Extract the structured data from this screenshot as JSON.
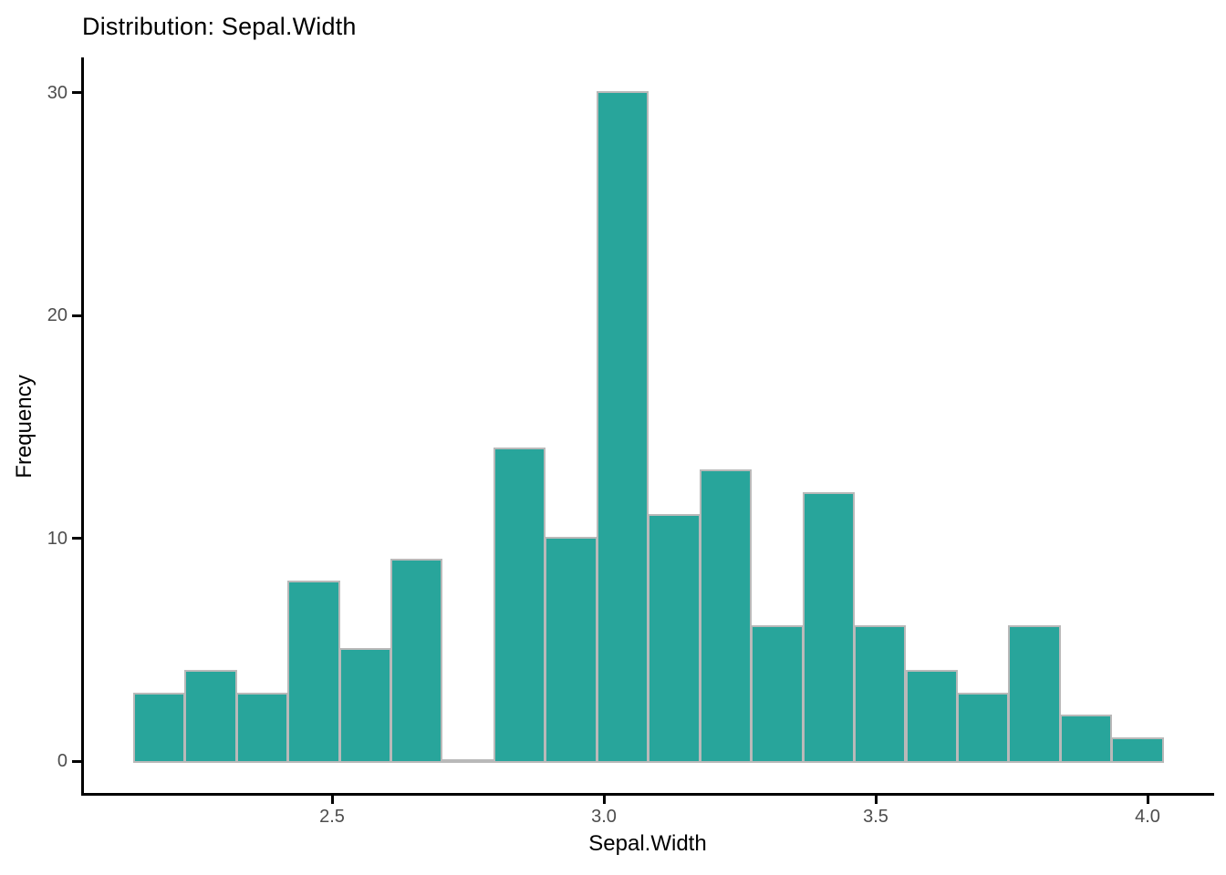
{
  "chart_data": {
    "type": "bar",
    "subtype": "histogram",
    "title": "Distribution: Sepal.Width",
    "xlabel": "Sepal.Width",
    "ylabel": "Frequency",
    "bin_start": 2.134,
    "bin_width": 0.0947,
    "counts": [
      3,
      4,
      3,
      8,
      5,
      9,
      0,
      14,
      10,
      30,
      11,
      13,
      6,
      12,
      6,
      4,
      3,
      6,
      2,
      1
    ],
    "n_total": 150,
    "x_ticks": [
      2.5,
      3.0,
      3.5,
      4.0
    ],
    "x_tick_labels": [
      "2.5",
      "3.0",
      "3.5",
      "4.0"
    ],
    "y_ticks": [
      0,
      10,
      20,
      30
    ],
    "y_tick_labels": [
      "0",
      "10",
      "20",
      "30"
    ],
    "ylim": [
      0,
      30
    ],
    "xlim": [
      2.13,
      4.15
    ],
    "grid": false,
    "legend_position": "none"
  },
  "colors": {
    "bar_fill": "#28A59B",
    "bar_border": "#B9B9B9",
    "axis_line": "#000000",
    "tick_label": "#4d4d4d",
    "text": "#000000",
    "background": "#ffffff"
  }
}
